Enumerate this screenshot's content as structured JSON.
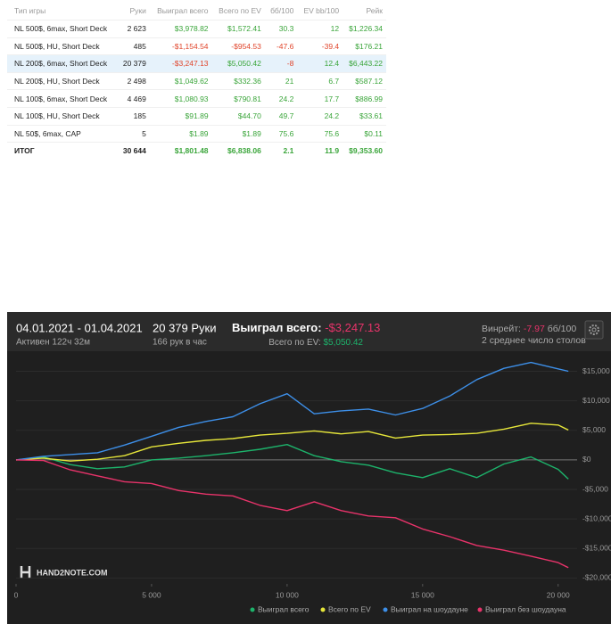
{
  "table": {
    "headers": [
      "Тип игры",
      "Руки",
      "Выиграл всего",
      "Всего по EV",
      "бб/100",
      "EV bb/100",
      "Рейк"
    ],
    "rows": [
      [
        "NL 500$, 6max, Short Deck",
        "2 623",
        "$3,978.82",
        "$1,572.41",
        "30.3",
        "12",
        "$1,226.34"
      ],
      [
        "NL 500$, HU, Short Deck",
        "485",
        "-$1,154.54",
        "-$954.53",
        "-47.6",
        "-39.4",
        "$176.21"
      ],
      [
        "NL 200$, 6max, Short Deck",
        "20 379",
        "-$3,247.13",
        "$5,050.42",
        "-8",
        "12.4",
        "$6,443.22"
      ],
      [
        "NL 200$, HU, Short Deck",
        "2 498",
        "$1,049.62",
        "$332.36",
        "21",
        "6.7",
        "$587.12"
      ],
      [
        "NL 100$, 6max, Short Deck",
        "4 469",
        "$1,080.93",
        "$790.81",
        "24.2",
        "17.7",
        "$886.99"
      ],
      [
        "NL 100$, HU, Short Deck",
        "185",
        "$91.89",
        "$44.70",
        "49.7",
        "24.2",
        "$33.61"
      ],
      [
        "NL 50$, 6max, CAP",
        "5",
        "$1.89",
        "$1.89",
        "75.6",
        "75.6",
        "$0.11"
      ]
    ],
    "total": [
      "ИТОГ",
      "30 644",
      "$1,801.48",
      "$6,838.06",
      "2.1",
      "11.9",
      "$9,353.60"
    ]
  },
  "panel": {
    "period": "04.01.2021 - 01.04.2021",
    "active": "Активен 122ч 32м",
    "hands": "20 379 Руки",
    "per_hour": "166 рук в час",
    "won_label": "Выиграл всего:",
    "won_value": "-$3,247.13",
    "ev_label": "Всего по EV:",
    "ev_value": "$5,050.42",
    "winrate_label": "Винрейт:",
    "winrate_value": "-7.97",
    "winrate_unit": "бб/100",
    "tables": "2 среднее число столов",
    "logo": "HAND2NOTE.COM"
  },
  "chart_data": {
    "type": "line",
    "x": [
      0,
      1000,
      2000,
      3000,
      4000,
      5000,
      6000,
      7000,
      8000,
      9000,
      10000,
      11000,
      12000,
      13000,
      14000,
      15000,
      16000,
      17000,
      18000,
      19000,
      20000,
      20379
    ],
    "xlim": [
      0,
      20700
    ],
    "xticks": [
      0,
      {
        "value": 5000,
        "label": "5 000"
      },
      {
        "value": 10000,
        "label": "10 000"
      },
      {
        "value": 15000,
        "label": "15 000"
      },
      {
        "value": 20000,
        "label": "20 000"
      }
    ],
    "ylim": [
      -21000,
      19000
    ],
    "yticks": [
      {
        "value": 15000,
        "label": "$15,000"
      },
      {
        "value": 10000,
        "label": "$10,000"
      },
      {
        "value": 5000,
        "label": "$5,000"
      },
      {
        "value": 0,
        "label": "$0"
      },
      {
        "value": -5000,
        "label": "-$5,000"
      },
      {
        "value": -10000,
        "label": "-$10,000"
      },
      {
        "value": -15000,
        "label": "-$15,000"
      },
      {
        "value": -20000,
        "label": "-$20,000"
      }
    ],
    "series": [
      {
        "name": "Выиграл всего",
        "color": "#1db36b",
        "values": [
          0,
          500,
          -800,
          -1500,
          -1200,
          0,
          300,
          700,
          1200,
          1800,
          2600,
          700,
          -300,
          -900,
          -2200,
          -3000,
          -1500,
          -3000,
          -700,
          500,
          -1600,
          -3247.13
        ]
      },
      {
        "name": "Всего по EV",
        "color": "#e6e63a",
        "values": [
          0,
          300,
          -200,
          100,
          700,
          2200,
          2800,
          3300,
          3600,
          4200,
          4500,
          4900,
          4400,
          4800,
          3700,
          4200,
          4300,
          4500,
          5200,
          6200,
          5900,
          5050.42
        ]
      },
      {
        "name": "Выиграл на шоудауне",
        "color": "#3d8fe8",
        "values": [
          0,
          600,
          900,
          1200,
          2500,
          4000,
          5500,
          6500,
          7300,
          9500,
          11200,
          7800,
          8300,
          8600,
          7600,
          8700,
          10800,
          13600,
          15500,
          16500,
          15400,
          15000
        ]
      },
      {
        "name": "Выиграл без шоудауна",
        "color": "#e8336a",
        "values": [
          0,
          -100,
          -1700,
          -2700,
          -3700,
          -4000,
          -5200,
          -5800,
          -6100,
          -7700,
          -8600,
          -7100,
          -8600,
          -9500,
          -9800,
          -11700,
          -13000,
          -14500,
          -15300,
          -16300,
          -17400,
          -18247.13
        ]
      }
    ],
    "grid": true,
    "legend": "bottom-right"
  }
}
